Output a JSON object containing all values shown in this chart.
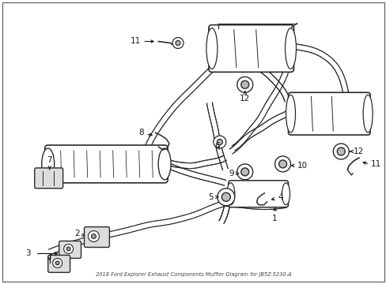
{
  "title": "2018 Ford Explorer Exhaust Components Muffler Diagram for JB5Z-5230-A",
  "bg": "#ffffff",
  "lc": "#2a2a2a",
  "fig_w": 4.89,
  "fig_h": 3.6,
  "dpi": 100,
  "label_fs": 7.5,
  "label_color": "#1a1a1a",
  "border_color": "#555555"
}
